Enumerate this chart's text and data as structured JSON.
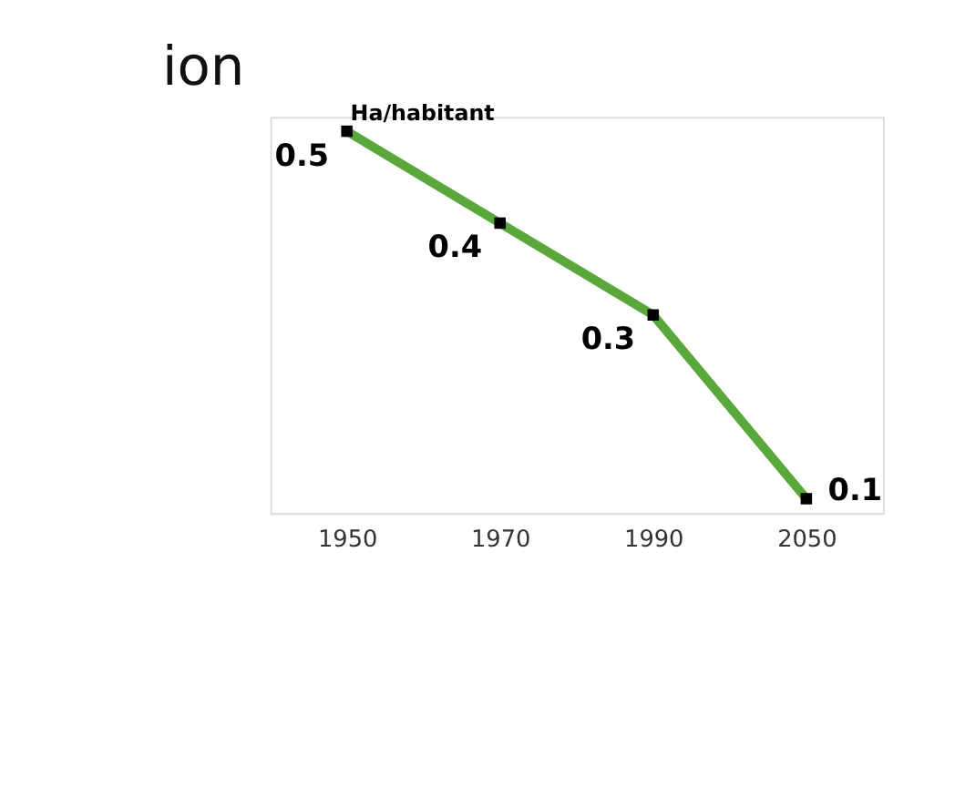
{
  "chart_data": {
    "type": "line",
    "ylabel": "Ha/habitant",
    "annotations": [
      "ion"
    ],
    "categories": [
      "1950",
      "1970",
      "1990",
      "2050"
    ],
    "series": [
      {
        "color": "#5aa83c",
        "values": [
          0.5,
          0.4,
          0.3,
          0.1
        ]
      }
    ],
    "data_labels": true,
    "marker": "square",
    "line_style": "solid",
    "grid": false,
    "tick_labels": "x"
  }
}
